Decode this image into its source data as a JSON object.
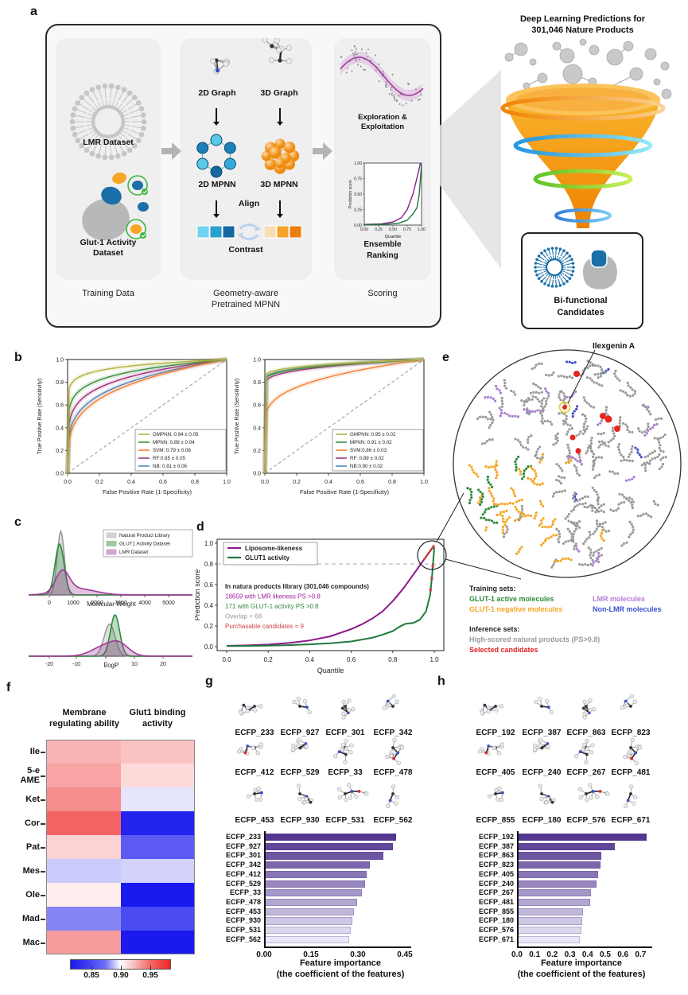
{
  "panels": {
    "a": "a",
    "b": "b",
    "c": "c",
    "d": "d",
    "e": "e",
    "f": "f",
    "g": "g",
    "h": "h"
  },
  "panel_a": {
    "training": {
      "lmr": "LMR Dataset",
      "glut_line1": "Glut-1 Activity",
      "glut_line2": "Dataset",
      "caption": "Training Data"
    },
    "middle": {
      "graph2d": "2D Graph",
      "graph3d": "3D Graph",
      "mpnn2d": "2D MPNN",
      "mpnn3d": "3D MPNN",
      "align": "Align",
      "contrast": "Contrast",
      "caption_line1": "Geometry-aware",
      "caption_line2": "Pretrained MPNN"
    },
    "scoring": {
      "exploration_line1": "Exploration &",
      "exploration_line2": "Exploitation",
      "ensemble_line1": "Ensemble",
      "ensemble_line2": "Ranking",
      "caption": "Scoring"
    },
    "funnel_title_line1": "Deep Learning Predictions for",
    "funnel_title_line2": "301,046 Nature Products",
    "candidates": {
      "line1": "Bi-functional",
      "line2": "Candidates"
    }
  },
  "panel_e": {
    "annotation": "Ilexgenin A",
    "training_title": "Training sets:",
    "inference_title": "Inference sets:",
    "training_items": [
      {
        "text": "GLUT-1 active molecules",
        "color": "#2e8b3a"
      },
      {
        "text": "GLUT-1 negative molecules",
        "color": "#f5a623"
      },
      {
        "text": "LMR molecules",
        "color": "#b57bd5"
      },
      {
        "text": "Non-LMR molecules",
        "color": "#3a50c8"
      }
    ],
    "inference_items": [
      {
        "text": "High-scored natural products (PS>0.8)",
        "color": "#9a9a9a"
      },
      {
        "text": "Selected candidates",
        "color": "#e02020"
      }
    ]
  },
  "chart_data": {
    "roc_left": {
      "type": "line",
      "xlabel": "False Positive Rate (1-Specificity)",
      "ylabel": "True Positive Rate (Sensitivity)",
      "xticks": [
        "0.0",
        "0.2",
        "0.4",
        "0.6",
        "0.8",
        "1.0"
      ],
      "yticks": [
        "1.0",
        "0.8",
        "0.6",
        "0.4",
        "0.2",
        "0.0"
      ],
      "series": [
        {
          "label": "GMPNN: 0.94 ± 0.05",
          "auc": 0.94,
          "jump": 0,
          "color": "#b5b342"
        },
        {
          "label": "MPNN: 0.89 ± 0.04",
          "auc": 0.89,
          "jump": 0,
          "color": "#3f8f42"
        },
        {
          "label": "SVM: 0.79 ± 0.08",
          "auc": 0.79,
          "jump": 0,
          "color": "#f58238"
        },
        {
          "label": "RF:0.85 ± 0.05",
          "auc": 0.85,
          "jump": 0,
          "color": "#a53580"
        },
        {
          "label": "NB: 0.81 ± 0.06",
          "auc": 0.81,
          "jump": 0,
          "color": "#5588c0"
        }
      ]
    },
    "roc_right": {
      "type": "line",
      "xlabel": "False Positive Rate (1-Specificity)",
      "ylabel": "True Positive Rate (Sensitivity)",
      "xticks": [
        "0.0",
        "0.2",
        "0.4",
        "0.6",
        "0.8",
        "1.0"
      ],
      "yticks": [
        "1.0",
        "0.8",
        "0.6",
        "0.4",
        "0.2",
        "0.0"
      ],
      "series": [
        {
          "label": "GMPNN: 0.95 ± 0.02",
          "auc": 0.95,
          "jump": 0.84,
          "color": "#b5b342"
        },
        {
          "label": "MPNN: 0.91 ± 0.02",
          "auc": 0.91,
          "jump": 0.8,
          "color": "#3f8f42"
        },
        {
          "label": "SVM:0.86 ± 0.03",
          "auc": 0.86,
          "jump": 0.42,
          "color": "#f58238"
        },
        {
          "label": "RF: 0.89 ± 0.02",
          "auc": 0.89,
          "jump": 0.77,
          "color": "#a53580"
        },
        {
          "label": "NB:0.90 ± 0.02",
          "auc": 0.9,
          "jump": 0.81,
          "color": "#5588c0"
        }
      ]
    },
    "density_mw": {
      "type": "area",
      "xlabel": "Molecular Weight",
      "xticks": [
        0,
        1000,
        2000,
        3000,
        4000,
        5000
      ],
      "xrange": [
        -600,
        5300
      ],
      "series": [
        {
          "name": "Natural Product Library",
          "color": "#9a9a9a",
          "components": [
            {
              "mean": 480,
              "sd": 150,
              "h": 1.0
            }
          ]
        },
        {
          "name": "GLUT1 Activity Dataset",
          "color": "#2e8b3a",
          "components": [
            {
              "mean": 430,
              "sd": 190,
              "h": 0.8
            }
          ]
        },
        {
          "name": "LMR Dataset",
          "color": "#a03898",
          "components": [
            {
              "mean": 550,
              "sd": 280,
              "h": 0.32
            },
            {
              "mean": 1150,
              "sd": 750,
              "h": 0.1
            }
          ]
        }
      ]
    },
    "density_logp": {
      "type": "area",
      "xlabel": "LogP",
      "xticks": [
        -20,
        -10,
        0,
        10,
        20
      ],
      "xrange": [
        -27,
        23
      ],
      "series": [
        {
          "name": "Natural Product Library",
          "color": "#9a9a9a",
          "components": [
            {
              "mean": 2.3,
              "sd": 2.0,
              "h": 0.78
            }
          ]
        },
        {
          "name": "GLUT1 Activity Dataset",
          "color": "#2e8b3a",
          "components": [
            {
              "mean": 4.3,
              "sd": 1.7,
              "h": 1.0
            }
          ]
        },
        {
          "name": "LMR Dataset",
          "color": "#a03898",
          "components": [
            {
              "mean": 0,
              "sd": 4.5,
              "h": 0.22
            },
            {
              "mean": 6,
              "sd": 3.5,
              "h": 0.26
            }
          ]
        }
      ]
    },
    "prediction_quantile": {
      "type": "line",
      "xlabel": "Quantile",
      "ylabel": "Prediction score",
      "threshold": 0.8,
      "xticks": [
        "0.0",
        "0.2",
        "0.4",
        "0.6",
        "0.8",
        "1.0"
      ],
      "yticks": [
        "1.0",
        "0.8",
        "0.6",
        "0.4",
        "0.2",
        "0.0"
      ],
      "series": [
        {
          "name": "Liposome-likeness",
          "color": "#8b1a8b",
          "points": [
            [
              0,
              0.008
            ],
            [
              0.1,
              0.012
            ],
            [
              0.2,
              0.02
            ],
            [
              0.3,
              0.035
            ],
            [
              0.4,
              0.06
            ],
            [
              0.5,
              0.1
            ],
            [
              0.6,
              0.17
            ],
            [
              0.65,
              0.215
            ],
            [
              0.7,
              0.27
            ],
            [
              0.75,
              0.34
            ],
            [
              0.8,
              0.44
            ],
            [
              0.85,
              0.56
            ],
            [
              0.9,
              0.7
            ],
            [
              0.95,
              0.84
            ],
            [
              1.0,
              0.98
            ]
          ]
        },
        {
          "name": "GLUT1 activity",
          "color": "#1f7a3f",
          "points": [
            [
              0,
              0.005
            ],
            [
              0.1,
              0.007
            ],
            [
              0.2,
              0.01
            ],
            [
              0.3,
              0.015
            ],
            [
              0.4,
              0.022
            ],
            [
              0.5,
              0.033
            ],
            [
              0.6,
              0.05
            ],
            [
              0.7,
              0.085
            ],
            [
              0.75,
              0.115
            ],
            [
              0.8,
              0.15
            ],
            [
              0.83,
              0.19
            ],
            [
              0.86,
              0.22
            ],
            [
              0.9,
              0.23
            ],
            [
              0.93,
              0.26
            ],
            [
              0.96,
              0.34
            ],
            [
              0.98,
              0.5
            ],
            [
              0.99,
              0.7
            ],
            [
              1.0,
              0.96
            ]
          ]
        }
      ],
      "annotations": [
        {
          "text": "In natura products library (301,046 compounds)",
          "color": "#222222"
        },
        {
          "text": "18659 with LMR likeness PS >0.8",
          "color": "#a020a0"
        },
        {
          "text": "171 with GLUT-1 activity PS >0.8",
          "color": "#2e8b3a"
        },
        {
          "text": "Overlap = 68",
          "color": "#999999"
        },
        {
          "text": "Purchasable candidates = 9",
          "color": "#cc4444"
        }
      ]
    },
    "ensemble_inset": {
      "type": "line",
      "xlabel": "Quantile",
      "ylabel": "Prediction score",
      "xticks": [
        "0.00",
        "0.25",
        "0.50",
        "0.75",
        "1.00"
      ],
      "yticks": [
        "1.00",
        "0.75",
        "0.50",
        "0.25",
        "0.00"
      ],
      "series": [
        {
          "name": "liposome",
          "color": "#8b1a8b",
          "points": [
            [
              0,
              0.01
            ],
            [
              0.3,
              0.02
            ],
            [
              0.5,
              0.05
            ],
            [
              0.65,
              0.12
            ],
            [
              0.75,
              0.25
            ],
            [
              0.85,
              0.5
            ],
            [
              0.93,
              0.8
            ],
            [
              0.98,
              1.0
            ]
          ]
        },
        {
          "name": "glut1",
          "color": "#1f7a3f",
          "points": [
            [
              0,
              0.01
            ],
            [
              0.4,
              0.015
            ],
            [
              0.6,
              0.03
            ],
            [
              0.75,
              0.08
            ],
            [
              0.85,
              0.18
            ],
            [
              0.92,
              0.28
            ],
            [
              0.96,
              0.5
            ],
            [
              1.0,
              1.0
            ]
          ]
        }
      ]
    },
    "heatmap": {
      "type": "heatmap",
      "rows": [
        "Ile",
        "5-e|AME",
        "Ket",
        "Cor",
        "Pat",
        "Mes",
        "Ole",
        "Mad",
        "Mac"
      ],
      "cols": [
        [
          "Membrane",
          "regulating ability"
        ],
        [
          "Glut1 binding",
          "activity"
        ]
      ],
      "values": [
        [
          0.926,
          0.921
        ],
        [
          0.932,
          0.913
        ],
        [
          0.94,
          0.899
        ],
        [
          0.955,
          0.828
        ],
        [
          0.916,
          0.86
        ],
        [
          0.896,
          0.897
        ],
        [
          0.906,
          0.822
        ],
        [
          0.878,
          0.852
        ],
        [
          0.935,
          0.818
        ]
      ],
      "colorbar_ticks": [
        "0.85",
        "0.90",
        "0.95"
      ]
    },
    "features_g": {
      "type": "bar",
      "xlabel1": "Feature importance",
      "xlabel2": "(the coefficient of the features)",
      "xticks": [
        "0.00",
        "0.15",
        "0.30",
        "0.45"
      ],
      "xmax": 0.45,
      "categories": [
        "ECFP_233",
        "ECFP_927",
        "ECFP_301",
        "ECFP_342",
        "ECFP_412",
        "ECFP_529",
        "ECFP_33",
        "ECFP_478",
        "ECFP_453",
        "ECFP_930",
        "ECFP_531",
        "ECFP_562"
      ],
      "values": [
        0.42,
        0.41,
        0.38,
        0.335,
        0.325,
        0.32,
        0.31,
        0.295,
        0.285,
        0.28,
        0.275,
        0.27
      ]
    },
    "features_h": {
      "type": "bar",
      "xlabel1": "Feature importance",
      "xlabel2": "(the coefficient of the features)",
      "xticks": [
        "0.0",
        "0.1",
        "0.2",
        "0.3",
        "0.4",
        "0.5",
        "0.6",
        "0.7"
      ],
      "xmax": 0.73,
      "categories": [
        "ECFP_192",
        "ECFP_387",
        "ECFP_863",
        "ECFP_823",
        "ECFP_405",
        "ECFP_240",
        "ECFP_267",
        "ECFP_481",
        "ECFP_855",
        "ECFP_180",
        "ECFP_576",
        "ECFP_671"
      ],
      "values": [
        0.73,
        0.55,
        0.475,
        0.47,
        0.455,
        0.445,
        0.415,
        0.41,
        0.37,
        0.365,
        0.36,
        0.35
      ]
    }
  }
}
